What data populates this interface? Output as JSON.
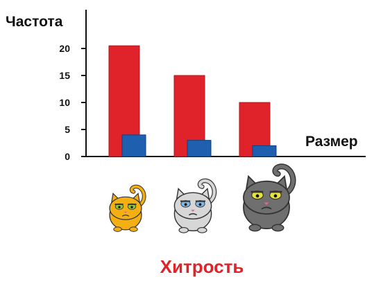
{
  "chart_data": {
    "type": "bar",
    "ylabel": "Частота",
    "xlabel": "Размер",
    "caption": "Хитрость",
    "ylim": [
      0,
      25
    ],
    "yticks": [
      0,
      5,
      10,
      15,
      20
    ],
    "categories": [
      "orange-cat",
      "white-cat",
      "gray-cat"
    ],
    "series": [
      {
        "values": [
          20.5,
          15,
          10
        ],
        "color": "#e0222a"
      },
      {
        "values": [
          4,
          3,
          2
        ],
        "color": "#1f5fb0"
      }
    ],
    "grid": false
  },
  "cats": [
    {
      "icon": "orange-cat-icon",
      "body": "#f4b012",
      "eyes": "#8fc23f",
      "size": "small"
    },
    {
      "icon": "white-cat-icon",
      "body": "#d7d7d7",
      "eyes": "#7fb8e6",
      "size": "medium"
    },
    {
      "icon": "gray-cat-icon",
      "body": "#6f6f6f",
      "eyes": "#e8e23a",
      "size": "large"
    }
  ]
}
